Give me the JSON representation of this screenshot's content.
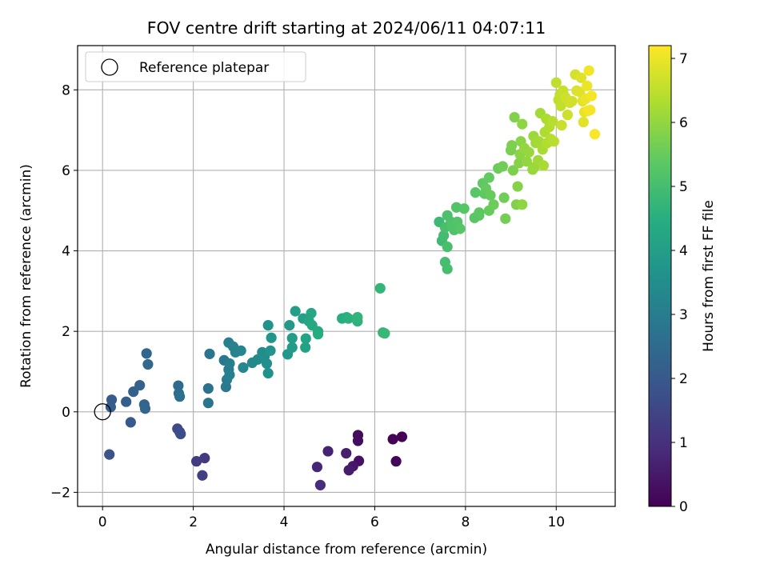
{
  "chart_data": {
    "type": "scatter",
    "title": "FOV centre drift starting at 2024/06/11 04:07:11",
    "xlabel": "Angular distance from reference (arcmin)",
    "ylabel": "Rotation from reference (arcmin)",
    "xlim": [
      -0.55,
      11.3
    ],
    "ylim": [
      -2.35,
      9.1
    ],
    "xticks": [
      0,
      2,
      4,
      6,
      8,
      10
    ],
    "yticks": [
      -2,
      0,
      2,
      4,
      6,
      8
    ],
    "grid": true,
    "legend": {
      "position": "top-left",
      "entries": [
        "Reference platepar"
      ]
    },
    "reference_point": {
      "x": 0,
      "y": 0,
      "label": "Reference platepar"
    },
    "colorbar": {
      "label": "Hours from first FF file",
      "colormap": "viridis",
      "range": [
        0,
        7.2
      ],
      "ticks": [
        0,
        1,
        2,
        3,
        4,
        5,
        6,
        7
      ]
    },
    "points": [
      [
        6.6,
        -0.62,
        0.0
      ],
      [
        6.4,
        -0.68,
        0.05
      ],
      [
        6.47,
        -1.23,
        0.1
      ],
      [
        5.63,
        -0.58,
        0.2
      ],
      [
        5.63,
        -0.72,
        0.25
      ],
      [
        5.65,
        -1.22,
        0.35
      ],
      [
        5.52,
        -1.35,
        0.45
      ],
      [
        5.43,
        -1.45,
        0.55
      ],
      [
        5.37,
        -1.03,
        0.6
      ],
      [
        4.97,
        -0.98,
        0.7
      ],
      [
        4.73,
        -1.37,
        0.8
      ],
      [
        4.8,
        -1.82,
        0.9
      ],
      [
        2.25,
        -1.15,
        1.2
      ],
      [
        2.07,
        -1.23,
        1.3
      ],
      [
        2.2,
        -1.58,
        1.35
      ],
      [
        1.65,
        -0.42,
        1.6
      ],
      [
        1.7,
        -0.5,
        1.65
      ],
      [
        1.72,
        -0.55,
        1.7
      ],
      [
        0.15,
        -1.06,
        1.8
      ],
      [
        0.62,
        -0.26,
        2.0
      ],
      [
        0.2,
        0.3,
        2.05
      ],
      [
        0.18,
        0.12,
        2.1
      ],
      [
        0.52,
        0.25,
        2.15
      ],
      [
        0.68,
        0.5,
        2.2
      ],
      [
        0.82,
        0.66,
        2.25
      ],
      [
        0.92,
        0.18,
        2.3
      ],
      [
        0.94,
        0.08,
        2.35
      ],
      [
        0.97,
        1.45,
        2.4
      ],
      [
        1.0,
        1.18,
        2.45
      ],
      [
        1.67,
        0.65,
        2.5
      ],
      [
        1.68,
        0.46,
        2.55
      ],
      [
        1.7,
        0.38,
        2.6
      ],
      [
        2.33,
        0.58,
        2.7
      ],
      [
        2.33,
        0.22,
        2.75
      ],
      [
        2.36,
        1.44,
        2.8
      ],
      [
        2.68,
        1.28,
        2.85
      ],
      [
        2.72,
        0.62,
        2.9
      ],
      [
        2.74,
        0.8,
        2.95
      ],
      [
        2.78,
        1.05,
        3.0
      ],
      [
        2.8,
        1.2,
        3.05
      ],
      [
        2.8,
        0.92,
        3.1
      ],
      [
        2.78,
        1.72,
        3.1
      ],
      [
        2.88,
        1.62,
        3.15
      ],
      [
        2.93,
        1.48,
        3.2
      ],
      [
        3.05,
        1.52,
        3.25
      ],
      [
        3.1,
        1.1,
        3.3
      ],
      [
        3.3,
        1.22,
        3.35
      ],
      [
        3.42,
        1.3,
        3.4
      ],
      [
        3.52,
        1.48,
        3.45
      ],
      [
        3.57,
        1.38,
        3.5
      ],
      [
        3.62,
        1.2,
        3.55
      ],
      [
        3.65,
        0.96,
        3.6
      ],
      [
        3.65,
        2.15,
        3.65
      ],
      [
        3.7,
        1.52,
        3.7
      ],
      [
        3.72,
        1.84,
        3.75
      ],
      [
        4.08,
        1.43,
        3.8
      ],
      [
        4.12,
        2.15,
        3.85
      ],
      [
        4.18,
        1.6,
        3.9
      ],
      [
        4.18,
        1.83,
        3.95
      ],
      [
        4.25,
        2.5,
        4.0
      ],
      [
        4.42,
        2.32,
        4.05
      ],
      [
        4.47,
        1.6,
        4.1
      ],
      [
        4.48,
        1.82,
        4.15
      ],
      [
        4.55,
        2.25,
        4.2
      ],
      [
        4.6,
        2.45,
        4.25
      ],
      [
        4.62,
        2.15,
        4.3
      ],
      [
        4.75,
        2.0,
        4.35
      ],
      [
        4.75,
        1.93,
        4.4
      ],
      [
        5.28,
        2.32,
        4.45
      ],
      [
        5.38,
        2.35,
        4.5
      ],
      [
        5.42,
        2.32,
        4.55
      ],
      [
        5.62,
        2.25,
        4.6
      ],
      [
        5.62,
        2.35,
        4.65
      ],
      [
        6.12,
        3.07,
        4.7
      ],
      [
        6.18,
        1.97,
        4.75
      ],
      [
        6.22,
        1.95,
        4.8
      ],
      [
        7.42,
        4.72,
        4.85
      ],
      [
        7.48,
        4.25,
        4.9
      ],
      [
        7.52,
        4.38,
        4.95
      ],
      [
        7.55,
        3.72,
        5.0
      ],
      [
        7.6,
        3.55,
        5.0
      ],
      [
        7.6,
        4.1,
        5.05
      ],
      [
        7.55,
        4.58,
        5.05
      ],
      [
        7.6,
        4.88,
        5.1
      ],
      [
        7.68,
        4.72,
        5.1
      ],
      [
        7.7,
        4.62,
        5.15
      ],
      [
        7.75,
        4.52,
        5.15
      ],
      [
        7.8,
        5.08,
        5.2
      ],
      [
        7.82,
        4.72,
        5.2
      ],
      [
        7.88,
        4.55,
        5.25
      ],
      [
        7.97,
        5.05,
        5.25
      ],
      [
        8.2,
        4.82,
        5.3
      ],
      [
        8.22,
        5.45,
        5.3
      ],
      [
        8.3,
        4.95,
        5.35
      ],
      [
        8.3,
        4.88,
        5.35
      ],
      [
        8.38,
        5.68,
        5.4
      ],
      [
        8.42,
        5.42,
        5.4
      ],
      [
        8.45,
        5.55,
        5.45
      ],
      [
        8.52,
        5.82,
        5.45
      ],
      [
        8.52,
        5.0,
        5.5
      ],
      [
        8.55,
        5.38,
        5.5
      ],
      [
        8.62,
        5.15,
        5.55
      ],
      [
        8.72,
        6.05,
        5.55
      ],
      [
        8.82,
        6.1,
        5.6
      ],
      [
        8.85,
        5.32,
        5.6
      ],
      [
        8.88,
        4.8,
        5.65
      ],
      [
        9.0,
        6.5,
        5.7
      ],
      [
        9.02,
        6.62,
        5.75
      ],
      [
        9.05,
        6.0,
        5.75
      ],
      [
        9.08,
        7.32,
        5.8
      ],
      [
        9.12,
        5.15,
        5.8
      ],
      [
        9.15,
        5.6,
        5.85
      ],
      [
        9.18,
        6.18,
        5.85
      ],
      [
        9.2,
        6.4,
        5.9
      ],
      [
        9.22,
        6.72,
        5.9
      ],
      [
        9.25,
        5.15,
        5.95
      ],
      [
        9.25,
        7.15,
        5.95
      ],
      [
        9.3,
        6.55,
        6.0
      ],
      [
        9.35,
        6.22,
        6.0
      ],
      [
        9.4,
        6.45,
        6.05
      ],
      [
        9.48,
        6.02,
        6.05
      ],
      [
        9.5,
        6.85,
        6.1
      ],
      [
        9.52,
        6.08,
        6.1
      ],
      [
        9.55,
        6.68,
        6.15
      ],
      [
        9.6,
        6.25,
        6.15
      ],
      [
        9.62,
        6.72,
        6.2
      ],
      [
        9.65,
        7.42,
        6.2
      ],
      [
        9.7,
        6.52,
        6.25
      ],
      [
        9.72,
        6.12,
        6.25
      ],
      [
        9.75,
        6.95,
        6.3
      ],
      [
        9.78,
        7.28,
        6.3
      ],
      [
        9.8,
        6.68,
        6.35
      ],
      [
        9.85,
        7.08,
        6.35
      ],
      [
        9.88,
        6.78,
        6.4
      ],
      [
        9.92,
        7.22,
        6.4
      ],
      [
        9.95,
        6.72,
        6.45
      ],
      [
        10.0,
        8.18,
        6.5
      ],
      [
        10.05,
        7.75,
        6.5
      ],
      [
        10.08,
        7.88,
        6.55
      ],
      [
        10.1,
        7.6,
        6.55
      ],
      [
        10.12,
        7.12,
        6.6
      ],
      [
        10.15,
        7.98,
        6.6
      ],
      [
        10.2,
        7.82,
        6.65
      ],
      [
        10.25,
        7.38,
        6.65
      ],
      [
        10.3,
        7.68,
        6.7
      ],
      [
        10.35,
        7.72,
        6.7
      ],
      [
        10.42,
        8.38,
        6.75
      ],
      [
        10.45,
        7.98,
        6.8
      ],
      [
        10.52,
        7.95,
        6.85
      ],
      [
        10.55,
        8.3,
        6.85
      ],
      [
        10.58,
        7.72,
        6.9
      ],
      [
        10.6,
        7.2,
        6.9
      ],
      [
        10.62,
        7.45,
        6.95
      ],
      [
        10.65,
        7.78,
        7.0
      ],
      [
        10.68,
        8.1,
        7.0
      ],
      [
        10.7,
        7.48,
        7.05
      ],
      [
        10.72,
        8.48,
        7.05
      ],
      [
        10.75,
        7.5,
        7.1
      ],
      [
        10.78,
        7.85,
        7.1
      ],
      [
        10.85,
        6.9,
        7.15
      ]
    ]
  }
}
